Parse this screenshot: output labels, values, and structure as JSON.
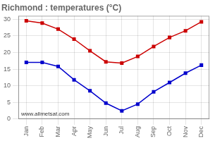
{
  "chart_data": {
    "type": "line",
    "title": "Richmond : temperatures (°C)",
    "categories": [
      "Jan",
      "Feb",
      "Mar",
      "Apr",
      "May",
      "Jun",
      "Jul",
      "Aug",
      "Sep",
      "Oct",
      "Nov",
      "Dec"
    ],
    "series": [
      {
        "color": "#cc0000",
        "values": [
          29.5,
          28.8,
          27.0,
          24.0,
          20.5,
          17.2,
          16.8,
          18.8,
          21.8,
          24.5,
          26.5,
          29.2
        ]
      },
      {
        "color": "#0000cc",
        "values": [
          17.0,
          17.0,
          15.8,
          11.8,
          8.5,
          4.8,
          2.5,
          4.5,
          8.2,
          11.0,
          13.8,
          16.2
        ]
      }
    ],
    "marker": "square",
    "ylim": [
      0,
      31
    ],
    "yticks": [
      0,
      5,
      10,
      15,
      20,
      25,
      30
    ],
    "grid": true,
    "annotation": "www.allmetsat.com"
  }
}
